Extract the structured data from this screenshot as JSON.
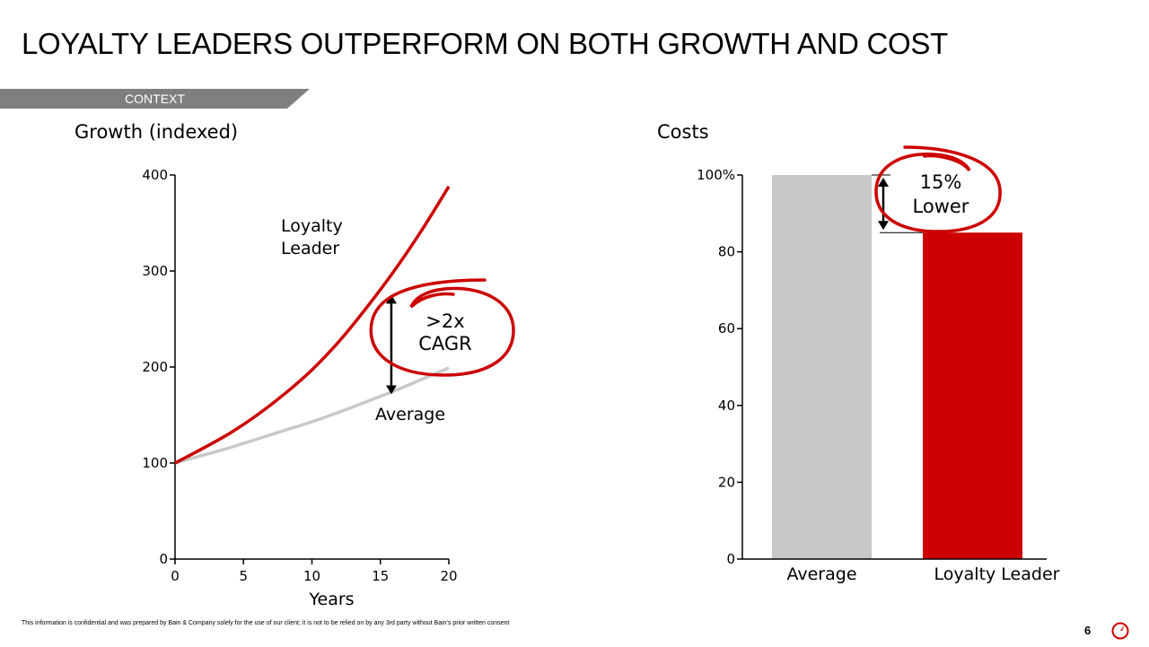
{
  "slide": {
    "title": "LOYALTY LEADERS OUTPERFORM ON BOTH GROWTH AND COST",
    "context_label": "CONTEXT",
    "disclaimer": "This information is confidential and was prepared by Bain & Company solely for the use of our client; it is not to be relied on by any 3rd party without Bain's prior written consent",
    "page_number": "6",
    "colors": {
      "accent": "#cc0000",
      "gray": "#c8c8c8",
      "banner": "#7f7f7f"
    },
    "logo_icon": "bain-logo-icon"
  },
  "chart_data": [
    {
      "type": "line",
      "title": "Growth (indexed)",
      "xlabel": "Years",
      "ylabel": "",
      "xlim": [
        0,
        20
      ],
      "ylim": [
        0,
        400
      ],
      "xticks": [
        0,
        5,
        10,
        15,
        20
      ],
      "yticks": [
        0,
        100,
        200,
        300,
        400
      ],
      "series": [
        {
          "name": "Loyalty Leader",
          "color": "#cc0000",
          "x": [
            0,
            2,
            4,
            6,
            8,
            10,
            12,
            14,
            16,
            18,
            20
          ],
          "y": [
            100,
            115,
            131,
            150,
            172,
            197,
            227,
            262,
            300,
            342,
            388
          ]
        },
        {
          "name": "Average",
          "color": "#c8c8c8",
          "x": [
            0,
            2,
            4,
            6,
            8,
            10,
            12,
            14,
            16,
            18,
            20
          ],
          "y": [
            100,
            108,
            116,
            125,
            134,
            143,
            153,
            164,
            175,
            187,
            199
          ]
        }
      ],
      "annotation": {
        "line1": ">2x",
        "line2": "CAGR",
        "arrow_x": 15.8,
        "arrow_from": 280,
        "arrow_to": 180
      }
    },
    {
      "type": "bar",
      "title": "Costs",
      "categories": [
        "Average",
        "Loyalty Leader"
      ],
      "values": [
        100,
        85
      ],
      "colors": [
        "#c8c8c8",
        "#cc0000"
      ],
      "ylim": [
        0,
        100
      ],
      "yticks": [
        0,
        20,
        40,
        60,
        80,
        100
      ],
      "ytick_labels": [
        "0",
        "20",
        "40",
        "60",
        "80",
        "100%"
      ],
      "annotation": {
        "line1": "15%",
        "line2": "Lower"
      }
    }
  ]
}
